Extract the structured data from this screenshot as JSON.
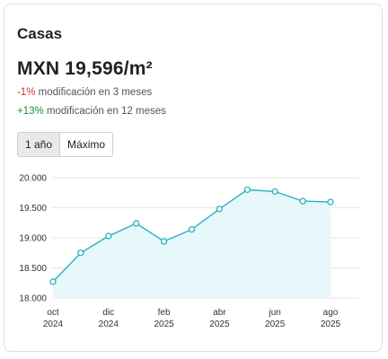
{
  "card": {
    "title": "Casas",
    "price": "MXN 19,596/m²",
    "change_3m": {
      "value": "-1%",
      "text": "modificación en 3 meses"
    },
    "change_12m": {
      "value": "+13%",
      "text": "modificación en 12 meses"
    }
  },
  "range_buttons": [
    {
      "label": "1 año",
      "active": true
    },
    {
      "label": "Máximo",
      "active": false
    }
  ],
  "colors": {
    "line": "#2bb0c0",
    "area": "#e6f8fa",
    "negative": "#d93025",
    "positive": "#1e8e3e"
  },
  "chart_data": {
    "type": "area",
    "x": [
      "2024-10",
      "2024-11",
      "2024-12",
      "2025-01",
      "2025-02",
      "2025-03",
      "2025-04",
      "2025-05",
      "2025-06",
      "2025-07",
      "2025-08"
    ],
    "values": [
      18270,
      18750,
      19030,
      19240,
      18940,
      19140,
      19480,
      19800,
      19770,
      19610,
      19596
    ],
    "ylim": [
      18000,
      20000
    ],
    "yticks": [
      {
        "value": 18000,
        "label": "18.000"
      },
      {
        "value": 18500,
        "label": "18.500"
      },
      {
        "value": 19000,
        "label": "19.000"
      },
      {
        "value": 19500,
        "label": "19.500"
      },
      {
        "value": 20000,
        "label": "20.000"
      }
    ],
    "xticks": [
      {
        "index": 0,
        "month": "oct",
        "year": "2024"
      },
      {
        "index": 2,
        "month": "dic",
        "year": "2024"
      },
      {
        "index": 4,
        "month": "feb",
        "year": "2025"
      },
      {
        "index": 6,
        "month": "abr",
        "year": "2025"
      },
      {
        "index": 8,
        "month": "jun",
        "year": "2025"
      },
      {
        "index": 10,
        "month": "ago",
        "year": "2025"
      }
    ],
    "grid": true
  }
}
